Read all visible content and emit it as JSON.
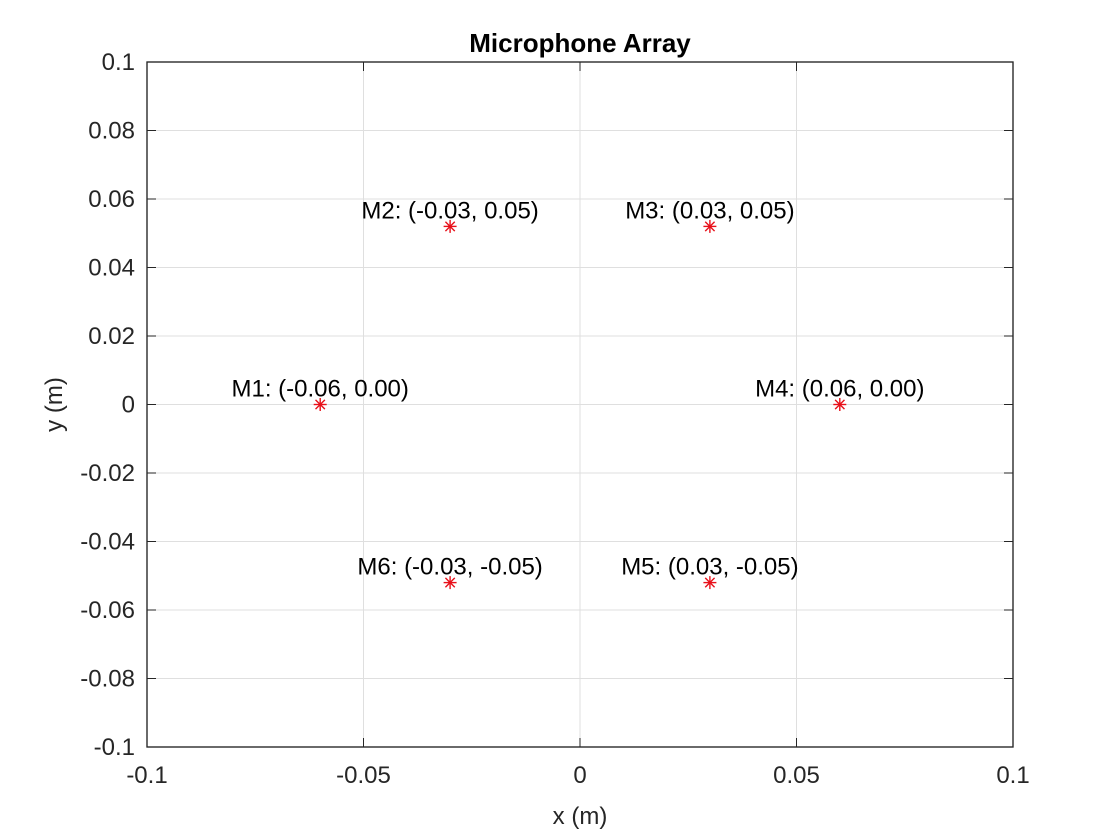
{
  "chart_data": {
    "type": "scatter",
    "title": "Microphone Array",
    "xlabel": "x (m)",
    "ylabel": "y (m)",
    "xlim": [
      -0.1,
      0.1
    ],
    "ylim": [
      -0.1,
      0.1
    ],
    "grid": true,
    "marker": "asterisk",
    "marker_color": "#e8101a",
    "x_ticks": [
      -0.1,
      -0.05,
      0,
      0.05,
      0.1
    ],
    "x_tick_labels": [
      "-0.1",
      "-0.05",
      "0",
      "0.05",
      "0.1"
    ],
    "y_ticks": [
      -0.1,
      -0.08,
      -0.06,
      -0.04,
      -0.02,
      0,
      0.02,
      0.04,
      0.06,
      0.08,
      0.1
    ],
    "y_tick_labels": [
      "-0.1",
      "-0.08",
      "-0.06",
      "-0.04",
      "-0.02",
      "0",
      "0.02",
      "0.04",
      "0.06",
      "0.08",
      "0.1"
    ],
    "points": [
      {
        "label": "M1: (-0.06, 0.00)",
        "x": -0.06,
        "y": 0.0
      },
      {
        "label": "M2: (-0.03, 0.05)",
        "x": -0.03,
        "y": 0.052
      },
      {
        "label": "M3: (0.03, 0.05)",
        "x": 0.03,
        "y": 0.052
      },
      {
        "label": "M4: (0.06, 0.00)",
        "x": 0.06,
        "y": 0.0
      },
      {
        "label": "M5: (0.03, -0.05)",
        "x": 0.03,
        "y": -0.052
      },
      {
        "label": "M6: (-0.03, -0.05)",
        "x": -0.03,
        "y": -0.052
      }
    ]
  }
}
